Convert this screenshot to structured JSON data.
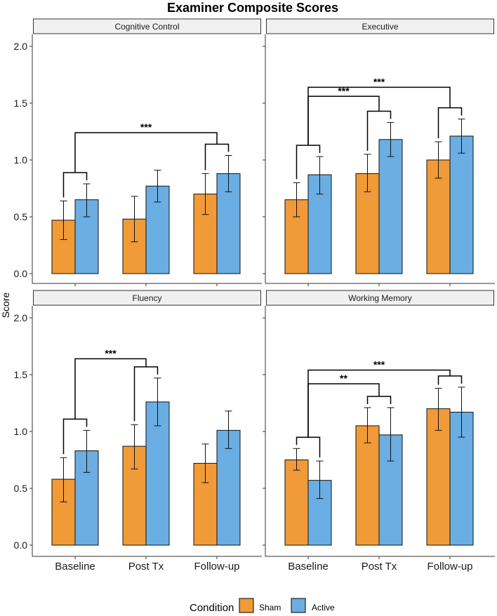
{
  "title": "Examiner Composite Scores",
  "ylabel": "Score",
  "colors": {
    "Sham": "#F19A38",
    "Active": "#6AAEE3",
    "strip": "#F0F0F0",
    "axis": "#333333"
  },
  "legend": {
    "title": "Condition",
    "items": [
      "Sham",
      "Active"
    ]
  },
  "chart_data": [
    {
      "type": "bar",
      "title": "Cognitive Control",
      "categories": [
        "Baseline",
        "Post Tx",
        "Follow-up"
      ],
      "ylim": [
        0,
        2.0
      ],
      "yticks": [
        "0.0",
        "0.5",
        "1.0",
        "1.5",
        "2.0"
      ],
      "series": [
        {
          "name": "Sham",
          "values": [
            0.47,
            0.48,
            0.7
          ],
          "err_low": [
            0.3,
            0.28,
            0.52
          ],
          "err_high": [
            0.64,
            0.68,
            0.88
          ]
        },
        {
          "name": "Active",
          "values": [
            0.65,
            0.77,
            0.88
          ],
          "err_low": [
            0.5,
            0.63,
            0.72
          ],
          "err_high": [
            0.79,
            0.91,
            1.04
          ]
        }
      ],
      "brackets": [
        {
          "from": 0,
          "to": 2,
          "top": 1.24,
          "label": "***"
        }
      ]
    },
    {
      "type": "bar",
      "title": "Executive",
      "categories": [
        "Baseline",
        "Post Tx",
        "Follow-up"
      ],
      "ylim": [
        0,
        2.0
      ],
      "yticks": [
        "0.0",
        "0.5",
        "1.0",
        "1.5",
        "2.0"
      ],
      "series": [
        {
          "name": "Sham",
          "values": [
            0.65,
            0.88,
            1.0
          ],
          "err_low": [
            0.5,
            0.72,
            0.84
          ],
          "err_high": [
            0.8,
            1.05,
            1.16
          ]
        },
        {
          "name": "Active",
          "values": [
            0.87,
            1.18,
            1.21
          ],
          "err_low": [
            0.7,
            1.03,
            1.06
          ],
          "err_high": [
            1.03,
            1.33,
            1.36
          ]
        }
      ],
      "brackets": [
        {
          "from": 0,
          "to": 1,
          "top": 1.56,
          "label": "***"
        },
        {
          "from": 0,
          "to": 2,
          "top": 1.64,
          "label": "***"
        }
      ]
    },
    {
      "type": "bar",
      "title": "Fluency",
      "categories": [
        "Baseline",
        "Post Tx",
        "Follow-up"
      ],
      "ylim": [
        0,
        2.0
      ],
      "yticks": [
        "0.0",
        "0.5",
        "1.0",
        "1.5",
        "2.0"
      ],
      "series": [
        {
          "name": "Sham",
          "values": [
            0.58,
            0.87,
            0.72
          ],
          "err_low": [
            0.38,
            0.67,
            0.55
          ],
          "err_high": [
            0.77,
            1.06,
            0.89
          ]
        },
        {
          "name": "Active",
          "values": [
            0.83,
            1.26,
            1.01
          ],
          "err_low": [
            0.64,
            1.05,
            0.85
          ],
          "err_high": [
            1.01,
            1.47,
            1.18
          ]
        }
      ],
      "brackets": [
        {
          "from": 0,
          "to": 1,
          "top": 1.64,
          "label": "***"
        }
      ]
    },
    {
      "type": "bar",
      "title": "Working Memory",
      "categories": [
        "Baseline",
        "Post Tx",
        "Follow-up"
      ],
      "ylim": [
        0,
        2.0
      ],
      "yticks": [
        "0.0",
        "0.5",
        "1.0",
        "1.5",
        "2.0"
      ],
      "series": [
        {
          "name": "Sham",
          "values": [
            0.75,
            1.05,
            1.2
          ],
          "err_low": [
            0.66,
            0.9,
            1.01
          ],
          "err_high": [
            0.85,
            1.21,
            1.38
          ]
        },
        {
          "name": "Active",
          "values": [
            0.57,
            0.97,
            1.17
          ],
          "err_low": [
            0.41,
            0.74,
            0.95
          ],
          "err_high": [
            0.74,
            1.21,
            1.39
          ]
        }
      ],
      "brackets": [
        {
          "from": 0,
          "to": 1,
          "top": 1.42,
          "label": "**"
        },
        {
          "from": 0,
          "to": 2,
          "top": 1.54,
          "label": "***"
        }
      ]
    }
  ]
}
